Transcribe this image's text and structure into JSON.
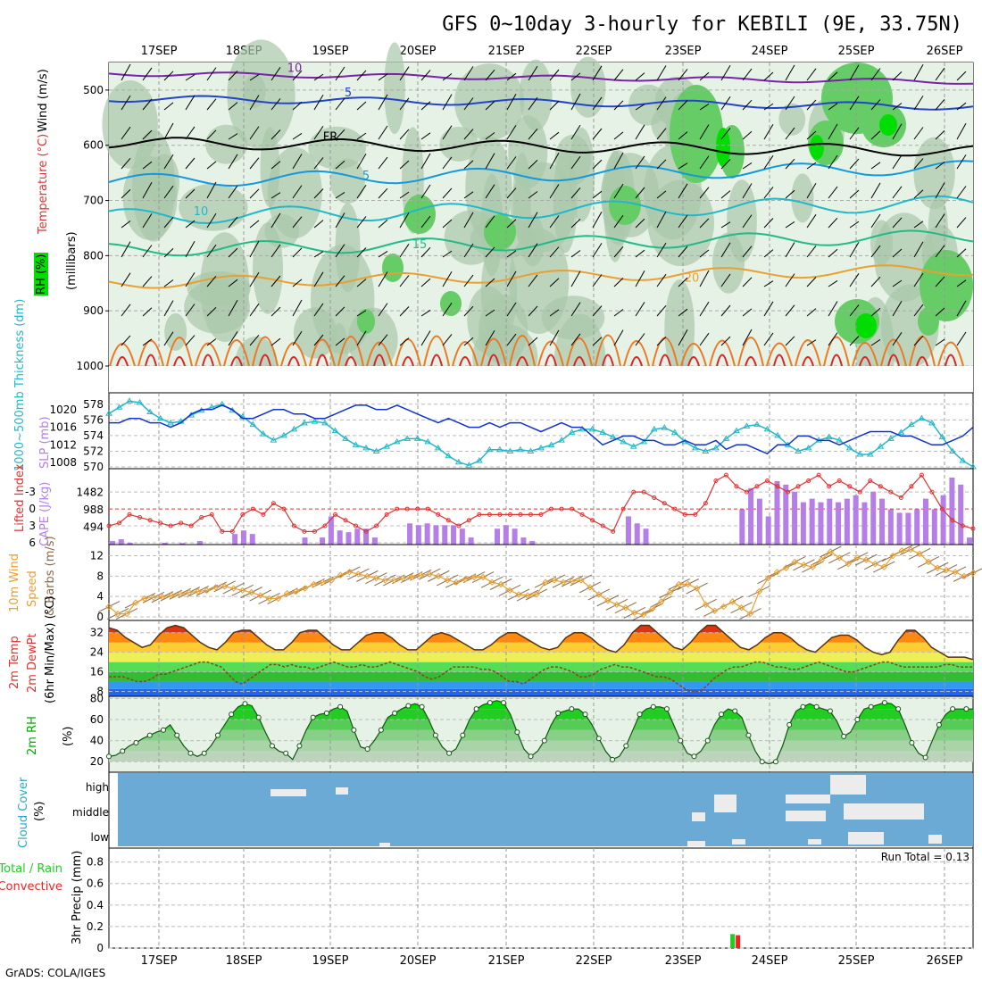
{
  "header": {
    "title": "GFS 0~10day 3-hourly for KEBILI (9E, 33.75N)",
    "footer": "GrADS: COLA/IGES"
  },
  "dates": [
    "17SEP",
    "18SEP",
    "19SEP",
    "20SEP",
    "21SEP",
    "22SEP",
    "23SEP",
    "24SEP",
    "25SEP",
    "26SEP"
  ],
  "colors": {
    "rh_dark": "#00dd00",
    "rh_mid": "#66cc66",
    "rh_light": "#aac8aa",
    "rh_pale": "#e6f2e6",
    "thickness": "#22b8c8",
    "slp": "#1133cc",
    "lifted": "#dd3333",
    "cape": "#b57ee8",
    "wind": "#e8a030",
    "barb": "#8a6a4a",
    "cloud": "#6aaad4",
    "precip_total": "#22cc22",
    "precip_conv": "#ee2222"
  },
  "chart_data": [
    {
      "id": "cross_section",
      "type": "heatmap",
      "labels": {
        "temp": "Temperature (°C)",
        "wind": "Wind (m/s)",
        "rh": "RH (%)",
        "pres": "(millibars)"
      },
      "yticks": [
        500,
        600,
        700,
        800,
        900,
        1000
      ],
      "ylim": [
        1000,
        450
      ],
      "isotherm_labels": [
        "10",
        "5",
        "FR",
        "5",
        "10",
        "15",
        "20"
      ]
    },
    {
      "id": "thickness_slp",
      "type": "line",
      "labels": {
        "thickness": "1000~500mb Thickness (dm)",
        "slp": "SLP (mb)"
      },
      "left_ticks": [
        570,
        572,
        574,
        576,
        578
      ],
      "right_ticks": [
        1008,
        1012,
        1016,
        1020
      ],
      "left_range": [
        570,
        579
      ],
      "right_range": [
        1007,
        1023
      ],
      "series": [
        {
          "name": "Thickness",
          "values": [
            576.8,
            577.6,
            578.4,
            578.2,
            577.0,
            576.2,
            575.6,
            575.8,
            576.6,
            577.2,
            577.6,
            578.0,
            577.2,
            576.4,
            575.4,
            574.2,
            573.4,
            574.0,
            574.8,
            575.6,
            575.8,
            575.6,
            574.6,
            573.6,
            572.8,
            572.4,
            572.0,
            572.6,
            573.2,
            573.6,
            573.6,
            573.2,
            572.4,
            571.4,
            570.6,
            570.2,
            570.8,
            572.2,
            572.2,
            572.0,
            572.2,
            572.0,
            572.4,
            572.8,
            573.4,
            574.4,
            574.8,
            574.8,
            574.4,
            573.8,
            573.2,
            572.6,
            573.2,
            574.8,
            575.0,
            574.4,
            573.2,
            572.4,
            572.0,
            572.4,
            573.6,
            574.6,
            575.2,
            575.4,
            574.8,
            574.0,
            572.8,
            572.0,
            572.4,
            573.4,
            573.8,
            573.4,
            572.4,
            571.6,
            571.6,
            572.6,
            573.6,
            574.4,
            575.4,
            576.2,
            575.6,
            573.8,
            572.0,
            570.8,
            570.0
          ]
        },
        {
          "name": "SLP",
          "values": [
            1017,
            1017,
            1018,
            1018,
            1017,
            1017,
            1016,
            1017,
            1019,
            1020,
            1020,
            1021,
            1020,
            1018,
            1018,
            1019,
            1020,
            1020,
            1019,
            1019,
            1018,
            1018,
            1019,
            1020,
            1021,
            1021,
            1020,
            1020,
            1021,
            1020,
            1019,
            1018,
            1017,
            1018,
            1017,
            1016,
            1016,
            1017,
            1016,
            1017,
            1017,
            1016,
            1015,
            1016,
            1017,
            1016,
            1016,
            1014,
            1012,
            1013,
            1014,
            1014,
            1013,
            1013,
            1012,
            1012,
            1013,
            1012,
            1012,
            1013,
            1011,
            1012,
            1012,
            1011,
            1010,
            1012,
            1012,
            1014,
            1014,
            1013,
            1013,
            1012,
            1013,
            1014,
            1015,
            1015,
            1015,
            1014,
            1014,
            1013,
            1012,
            1012,
            1013,
            1014,
            1016
          ]
        }
      ]
    },
    {
      "id": "stability",
      "type": "bar",
      "labels": {
        "li": "Lifted Index",
        "cape": "CAPE (J/kg)"
      },
      "left_ticks": [
        -3,
        0,
        3,
        6
      ],
      "left_tick_text": [
        "-3",
        "0",
        "3",
        "6"
      ],
      "right_ticks": [
        494,
        988,
        1482
      ],
      "li_range": [
        -6.5,
        6
      ],
      "cape_range": [
        0,
        2000
      ],
      "series": [
        {
          "name": "Lifted Index",
          "values": [
            3,
            2.5,
            1,
            1.5,
            2,
            2.5,
            3,
            2.5,
            3,
            1.5,
            1,
            4,
            4,
            1,
            0,
            1,
            -1,
            0,
            3,
            4,
            4,
            3,
            1,
            2,
            3,
            4,
            3,
            1,
            0,
            0,
            0,
            0,
            1,
            2,
            3,
            2,
            1,
            1,
            1,
            1,
            1,
            1,
            1,
            0,
            0,
            0,
            1,
            2,
            3,
            4,
            0,
            -3,
            -3,
            -2,
            -1,
            0,
            1,
            1,
            -1,
            -5,
            -6,
            -4,
            -3,
            -4,
            -5,
            -4,
            -3,
            -4,
            -5,
            -6,
            -4,
            -5,
            -4,
            -3,
            -5,
            -4,
            -3,
            -2,
            -4,
            -6,
            -3,
            0,
            2,
            3,
            3.5
          ]
        },
        {
          "name": "CAPE",
          "values": [
            100,
            150,
            50,
            0,
            0,
            0,
            50,
            0,
            40,
            0,
            100,
            0,
            0,
            0,
            300,
            400,
            300,
            0,
            0,
            0,
            0,
            0,
            200,
            0,
            200,
            800,
            400,
            350,
            450,
            450,
            200,
            0,
            0,
            0,
            600,
            550,
            600,
            550,
            550,
            550,
            450,
            200,
            0,
            0,
            450,
            550,
            450,
            200,
            100,
            0,
            0,
            0,
            0,
            0,
            0,
            0,
            0,
            0,
            0,
            800,
            600,
            450,
            0,
            0,
            0,
            0,
            0,
            0,
            0,
            0,
            0,
            0,
            1000,
            1600,
            1300,
            800,
            1800,
            1700,
            1500,
            1200,
            1300,
            1200,
            1300,
            1200,
            1300,
            1400,
            1200,
            1500,
            1300,
            1000,
            900,
            900,
            1000,
            1300,
            1000,
            1400,
            1900,
            1700,
            200
          ]
        }
      ]
    },
    {
      "id": "wind10m",
      "type": "line",
      "labels": {
        "wind": "10m Wind",
        "speed": "Speed",
        "barbs": "& Barbs (m/s)"
      },
      "yticks": [
        0,
        4,
        8,
        12
      ],
      "ylim": [
        0,
        13.5
      ],
      "series": [
        {
          "name": "Speed",
          "values": [
            2,
            0.6,
            0.6,
            2.8,
            3.6,
            3.8,
            3.9,
            4.2,
            4.5,
            4.8,
            5.0,
            5.2,
            5.8,
            6.0,
            5.6,
            5.2,
            4.8,
            4.2,
            3.6,
            3.6,
            4.6,
            5.0,
            5.6,
            6.4,
            6.8,
            7.2,
            8.2,
            8.8,
            8.4,
            8.0,
            7.6,
            7.2,
            7.2,
            7.6,
            7.8,
            8.2,
            8.4,
            8.0,
            7.2,
            6.8,
            7.4,
            7.8,
            7.8,
            6.8,
            6.4,
            5.2,
            4.4,
            4.2,
            4.4,
            6.8,
            7.2,
            6.8,
            7.0,
            7.2,
            5.8,
            4.4,
            3.2,
            2.4,
            1.8,
            0.8,
            0.4,
            1.6,
            3.0,
            4.8,
            6.4,
            6.4,
            5.6,
            2.4,
            1.2,
            2.0,
            3.0,
            1.8,
            0.6,
            5.0,
            7.6,
            8.8,
            9.6,
            10.8,
            10.2,
            9.8,
            11.2,
            12.8,
            11.6,
            10.4,
            11.6,
            11.2,
            10.4,
            9.8,
            12.0,
            13.0,
            13.2,
            12.4,
            10.8,
            9.6,
            9.2,
            8.8,
            8.0,
            8.6
          ]
        }
      ]
    },
    {
      "id": "temperature",
      "type": "area",
      "labels": {
        "temp": "2m Temp",
        "dew": "2m DewPt",
        "minmax": "(6hr Min/Max) (°C)"
      },
      "yticks": [
        8,
        16,
        24,
        32
      ],
      "ylim": [
        6,
        37
      ],
      "series": [
        {
          "name": "Temp",
          "values": [
            34,
            33,
            30,
            28,
            26,
            27,
            31,
            34,
            35,
            34,
            31,
            28,
            26,
            25,
            28,
            32,
            33,
            33,
            30,
            27,
            25,
            25,
            28,
            32,
            33,
            33,
            30,
            27,
            25,
            25,
            28,
            31,
            32,
            32,
            30,
            27,
            25,
            25,
            28,
            31,
            32,
            31,
            29,
            27,
            25,
            25,
            27,
            30,
            32,
            32,
            30,
            28,
            26,
            25,
            26,
            30,
            32,
            32,
            30,
            27,
            25,
            24,
            27,
            32,
            35,
            35,
            32,
            29,
            26,
            25,
            28,
            32,
            35,
            35,
            32,
            29,
            26,
            25,
            27,
            30,
            32,
            32,
            30,
            27,
            25,
            24,
            27,
            30,
            31,
            31,
            29,
            26,
            24,
            23,
            24,
            29,
            33,
            33,
            30,
            26,
            24,
            22,
            22,
            22,
            21
          ]
        },
        {
          "name": "DewPt",
          "values": [
            14,
            14,
            14,
            13,
            12,
            12,
            13,
            15,
            15,
            16,
            17,
            18,
            19,
            20,
            20,
            19,
            18,
            15,
            12,
            11,
            13,
            15,
            17,
            19,
            19,
            18,
            19,
            18,
            18,
            17,
            18,
            19,
            20,
            19,
            18,
            18,
            19,
            18,
            18,
            19,
            20,
            19,
            18,
            17,
            16,
            14,
            13,
            14,
            16,
            18,
            18,
            18,
            18,
            17,
            17,
            16,
            14,
            12,
            12,
            11,
            13,
            15,
            17,
            18,
            18,
            17,
            16,
            14,
            14,
            15,
            17,
            18,
            19,
            18,
            18,
            17,
            16,
            15,
            14,
            14,
            13,
            11,
            9,
            8,
            8,
            10,
            13,
            15,
            17,
            18,
            18,
            19,
            20,
            20,
            19,
            18,
            18,
            17,
            17,
            18,
            19,
            20,
            19,
            18,
            17,
            16,
            16,
            17,
            18,
            19,
            20,
            20,
            19,
            18,
            18,
            18,
            18,
            18,
            18,
            19,
            19,
            18,
            18,
            18
          ]
        }
      ]
    },
    {
      "id": "rh2m",
      "type": "area",
      "labels": {
        "rh": "2m RH",
        "unit": "(%)"
      },
      "yticks": [
        20,
        40,
        60,
        80
      ],
      "ylim": [
        10,
        82
      ],
      "series": [
        {
          "name": "RH",
          "values": [
            25,
            26,
            30,
            35,
            38,
            42,
            45,
            48,
            50,
            55,
            45,
            35,
            28,
            25,
            28,
            35,
            45,
            55,
            65,
            72,
            75,
            73,
            62,
            48,
            35,
            30,
            28,
            22,
            35,
            50,
            62,
            65,
            66,
            70,
            72,
            68,
            50,
            34,
            32,
            40,
            50,
            62,
            66,
            70,
            73,
            75,
            72,
            60,
            45,
            34,
            28,
            32,
            45,
            60,
            70,
            74,
            76,
            78,
            76,
            65,
            48,
            32,
            25,
            30,
            40,
            55,
            66,
            68,
            70,
            70,
            65,
            55,
            42,
            30,
            22,
            25,
            35,
            50,
            65,
            70,
            72,
            72,
            70,
            55,
            40,
            28,
            25,
            30,
            40,
            55,
            65,
            70,
            68,
            62,
            45,
            30,
            20,
            18,
            20,
            35,
            55,
            68,
            72,
            75,
            72,
            70,
            68,
            58,
            44,
            48,
            60,
            70,
            72,
            74,
            76,
            75,
            70,
            55,
            38,
            28,
            24,
            40,
            55,
            65,
            70,
            70,
            70,
            70
          ]
        }
      ]
    },
    {
      "id": "cloud",
      "type": "heatmap",
      "labels": {
        "cloud": "Cloud Cover",
        "unit": "(%)",
        "high": "high",
        "middle": "middle",
        "low": "low"
      }
    },
    {
      "id": "precip",
      "type": "bar",
      "labels": {
        "total": "Total / Rain",
        "conv": "Convective",
        "precip": "3hr Precip (mm)",
        "run_total": "Run Total = 0.13"
      },
      "yticks": [
        0,
        0.2,
        0.4,
        0.6,
        0.8
      ],
      "yticks_text": [
        "0",
        "0.2",
        "0.4",
        "0.6",
        "0.8"
      ],
      "ylim": [
        0,
        0.93
      ],
      "series": [
        {
          "name": "Total",
          "index": 52.7,
          "value": 0.13
        },
        {
          "name": "Convective",
          "index": 52.7,
          "value": 0.12
        }
      ]
    }
  ]
}
